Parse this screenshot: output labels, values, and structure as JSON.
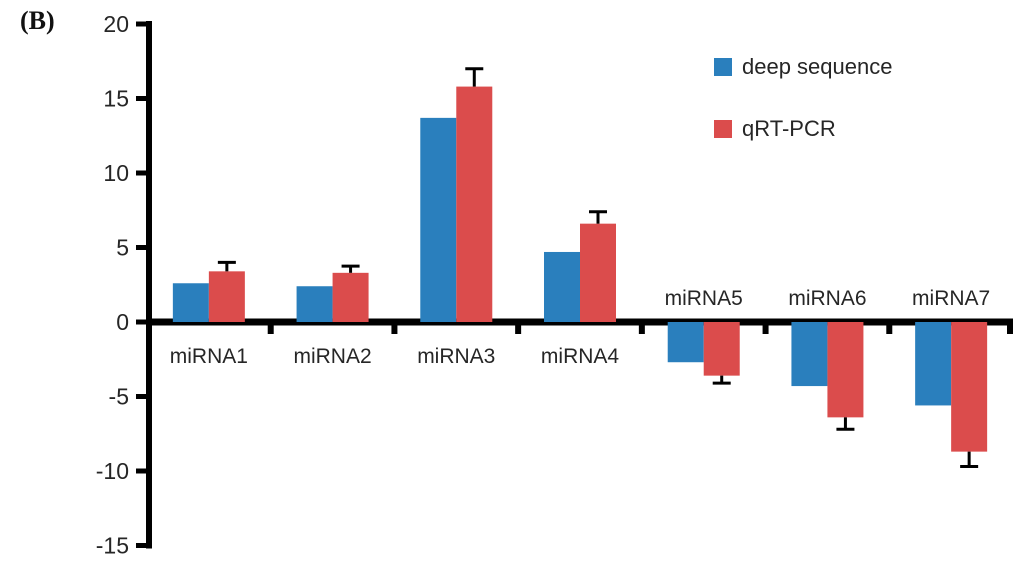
{
  "panel_label": "(B)",
  "colors": {
    "deep_sequence": "#2A7FBD",
    "qrt_pcr": "#DB4C4C",
    "axis": "#000000",
    "text": "#262626",
    "background": "#ffffff"
  },
  "legend": {
    "position": "top-right",
    "items": [
      {
        "label": "deep sequence"
      },
      {
        "label": "qRT-PCR"
      }
    ]
  },
  "chart_data": {
    "type": "bar",
    "title": "",
    "xlabel": "",
    "ylabel": "",
    "categories": [
      "miRNA1",
      "miRNA2",
      "miRNA3",
      "miRNA4",
      "miRNA5",
      "miRNA6",
      "miRNA7"
    ],
    "series": [
      {
        "name": "deep sequence",
        "color": "#2A7FBD",
        "values": [
          2.6,
          2.4,
          13.7,
          4.7,
          -2.7,
          -4.3,
          -5.6
        ]
      },
      {
        "name": "qRT-PCR",
        "color": "#DB4C4C",
        "values": [
          3.4,
          3.3,
          15.8,
          6.6,
          -3.6,
          -6.4,
          -8.7
        ],
        "errors": [
          0.6,
          0.45,
          1.2,
          0.8,
          0.5,
          0.8,
          1.0
        ]
      }
    ],
    "ylim": [
      -15,
      20
    ],
    "yticks": [
      20,
      15,
      10,
      5,
      0,
      -5,
      -10,
      -15
    ],
    "ytick_interval": 5,
    "grid": false,
    "legend_position": "top-right"
  }
}
